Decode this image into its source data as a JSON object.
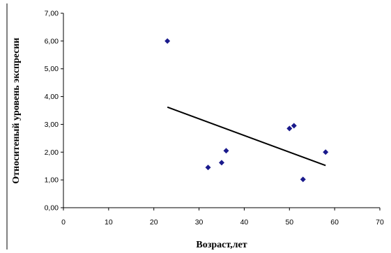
{
  "chart_data": {
    "type": "scatter",
    "title": "",
    "xlabel": "Возраст,лет",
    "ylabel": "Относитеный уровень экспресии",
    "xlim": [
      0,
      70
    ],
    "ylim": [
      0,
      7
    ],
    "x_ticks": [
      "0",
      "10",
      "20",
      "30",
      "40",
      "50",
      "60",
      "70"
    ],
    "y_ticks": [
      "0,00",
      "1,00",
      "2,00",
      "3,00",
      "4,00",
      "5,00",
      "6,00",
      "7,00"
    ],
    "grid": false,
    "legend": "none",
    "marker": "diamond",
    "marker_color": "#1a1a8c",
    "points": [
      {
        "x": 23,
        "y": 6.0
      },
      {
        "x": 32,
        "y": 1.45
      },
      {
        "x": 35,
        "y": 1.62
      },
      {
        "x": 36,
        "y": 2.05
      },
      {
        "x": 50,
        "y": 2.85
      },
      {
        "x": 51,
        "y": 2.95
      },
      {
        "x": 53,
        "y": 1.02
      },
      {
        "x": 58,
        "y": 2.0
      }
    ],
    "trendline": {
      "x1": 23,
      "y1": 3.62,
      "x2": 58,
      "y2": 1.52,
      "color": "#000000"
    }
  }
}
